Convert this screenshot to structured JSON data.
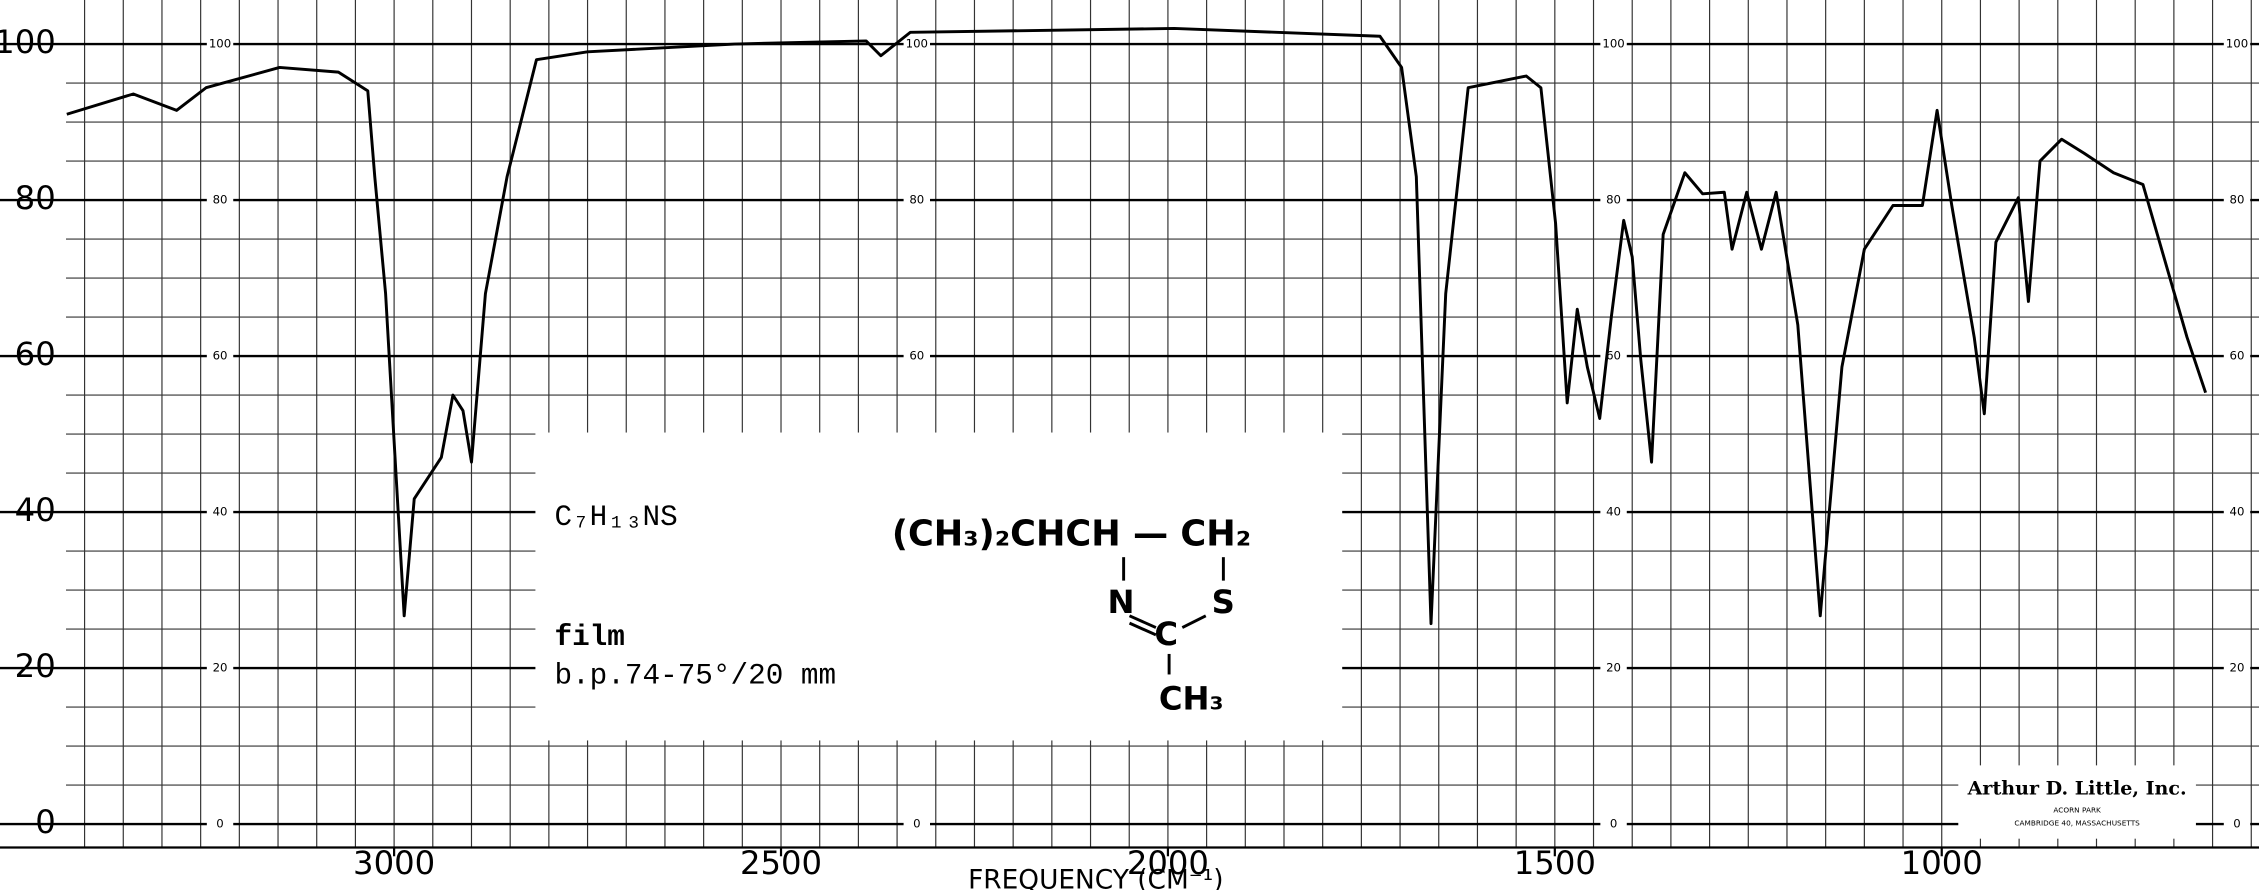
{
  "chart_data": {
    "type": "line",
    "x_label": "FREQUENCY (CM⁻¹)",
    "formula": "C₇H₁₃NS",
    "sample": "film",
    "boiling_point": "b.p.74-75°/20 mm",
    "structure": [
      "(CH₃)₂CHCH — CH₂",
      "N",
      "S",
      "C",
      "CH₃"
    ],
    "logo": [
      "Arthur D. Little, Inc.",
      "ACORN PARK",
      "CAMBRIDGE 40, MASSACHUSETTS"
    ],
    "color": "#000000",
    "xlim": [
      3424,
      590
    ],
    "ylim": [
      -3,
      102
    ],
    "xticks": [
      3000,
      2500,
      2000,
      1500,
      1000
    ],
    "yticks": [
      100,
      80,
      60,
      40,
      20,
      0
    ],
    "xminorticks": [
      3400,
      3350,
      3300,
      3250,
      3200,
      3150,
      3100,
      3050,
      3000,
      2950,
      2900,
      2850,
      2800,
      2750,
      2700,
      2650,
      2600,
      2550,
      2500,
      2450,
      2400,
      2350,
      2300,
      2250,
      2200,
      2150,
      2100,
      2050,
      2000,
      1950,
      1900,
      1850,
      1800,
      1750,
      1700,
      1650,
      1600,
      1550,
      1500,
      1450,
      1400,
      1350,
      1300,
      1250,
      1200,
      1150,
      1100,
      1050,
      1000,
      950,
      900,
      850,
      800,
      750,
      700,
      650,
      600
    ],
    "yminorticks": [
      0,
      5,
      10,
      15,
      20,
      25,
      30,
      35,
      40,
      45,
      50,
      55,
      60,
      65,
      70,
      75,
      80,
      85,
      90,
      95,
      100
    ],
    "grid": true,
    "x": [
      3423,
      3337,
      3281,
      3243,
      3148,
      3072,
      3034,
      3025,
      3011,
      2987,
      2974,
      2939,
      2924,
      2911,
      2900,
      2882,
      2854,
      2816,
      2750,
      2560,
      2390,
      2371,
      2333,
      1992,
      1726,
      1698,
      1679,
      1660,
      1641,
      1612,
      1537,
      1518,
      1499,
      1484,
      1471,
      1458,
      1442,
      1427,
      1411,
      1400,
      1389,
      1375,
      1360,
      1332,
      1309,
      1281,
      1271,
      1252,
      1233,
      1214,
      1186,
      1157,
      1129,
      1100,
      1063,
      1025,
      1006,
      987,
      958,
      945,
      930,
      901,
      888,
      873,
      845,
      816,
      778,
      740,
      683,
      659
    ],
    "values": [
      91,
      93.6,
      91.5,
      94.4,
      97,
      96.4,
      94,
      83,
      68,
      26.7,
      41.7,
      47,
      55,
      53,
      46.4,
      68,
      83,
      98,
      99,
      100,
      100.4,
      98.5,
      101.5,
      102,
      101,
      97,
      83,
      25.7,
      68,
      94.4,
      95.9,
      94.4,
      77,
      54,
      66,
      58.6,
      52,
      65,
      77.4,
      72.7,
      59.6,
      46.4,
      75.6,
      83.5,
      80.8,
      81,
      73.7,
      81,
      73.7,
      81,
      64,
      26.7,
      58.6,
      73.7,
      79.3,
      79.3,
      91.5,
      79.3,
      62.4,
      52.6,
      74.6,
      80.3,
      67,
      85,
      87.8,
      86,
      83.5,
      82,
      62.4,
      55.3
    ]
  }
}
